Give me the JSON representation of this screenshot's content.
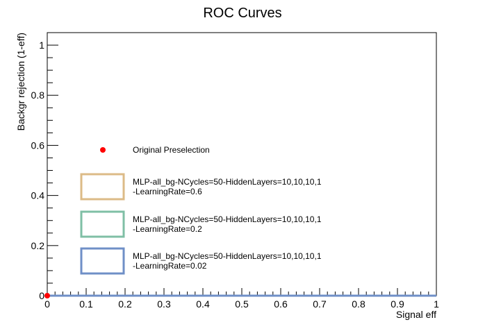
{
  "chart_data": {
    "type": "line",
    "title": "ROC Curves",
    "xlabel": "Signal eff",
    "ylabel": "Backgr rejection (1-eff)",
    "xlim": [
      0,
      1
    ],
    "ylim": [
      0,
      1.05
    ],
    "x_ticks": [
      "0",
      "0.1",
      "0.2",
      "0.3",
      "0.4",
      "0.5",
      "0.6",
      "0.7",
      "0.8",
      "0.9",
      "1"
    ],
    "y_ticks": [
      "0",
      "0.2",
      "0.4",
      "0.6",
      "0.8",
      "1"
    ],
    "grid": false,
    "legend_position": "left-center",
    "points": [
      {
        "name": "Original Preselection",
        "x": 0,
        "y": 0,
        "color": "#ff0000"
      }
    ],
    "series": [
      {
        "label_line1": "MLP-all_bg-NCycles=50-HiddenLayers=10,10,10,1",
        "label_line2": "-LearningRate=0.6",
        "color": "#dcbb87",
        "x": [
          0,
          1
        ],
        "y": [
          0,
          0
        ]
      },
      {
        "label_line1": "MLP-all_bg-NCycles=50-HiddenLayers=10,10,10,1",
        "label_line2": "-LearningRate=0.2",
        "color": "#7fbfa5",
        "x": [
          0,
          1
        ],
        "y": [
          0,
          0
        ]
      },
      {
        "label_line1": "MLP-all_bg-NCycles=50-HiddenLayers=10,10,10,1",
        "label_line2": "-LearningRate=0.02",
        "color": "#6f8fc7",
        "x": [
          0,
          1
        ],
        "y": [
          0,
          0
        ]
      }
    ]
  }
}
